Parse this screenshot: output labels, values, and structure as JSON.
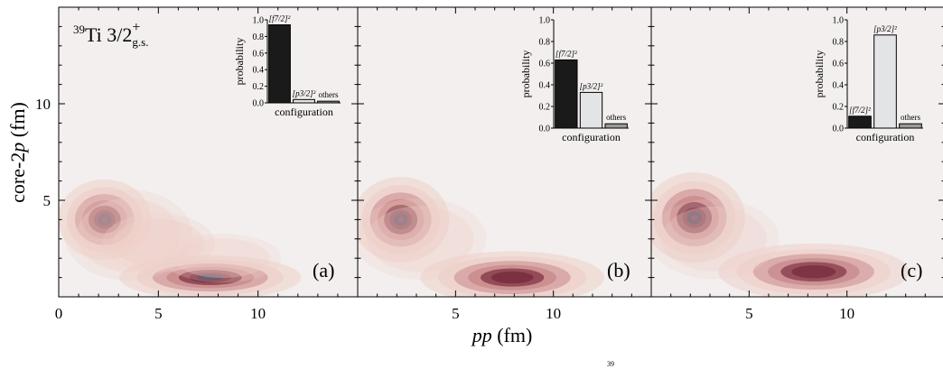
{
  "figure": {
    "ylabel": "core-2p (fm)",
    "xlabel": "pp (fm)",
    "nucleus_label": {
      "mass": "39",
      "text": "Ti 3/2",
      "sup": "+",
      "sub": "g.s."
    },
    "footer_text": "39"
  },
  "colors": {
    "background": "#f2efee",
    "density_light": "#eecfc9",
    "density_mid": "#c8898a",
    "density_dark": "#7a2f3f",
    "density_core": "#3e3550",
    "bar_dark": "#1a1a1a",
    "bar_light": "#e3e4e6",
    "bar_gray": "#9a9a9a"
  },
  "chart_data": [
    {
      "type": "heatmap",
      "panel_label": "(a)",
      "xlabel": "pp (fm)",
      "ylabel": "core-2p (fm)",
      "xlim": [
        0,
        15
      ],
      "ylim": [
        0,
        15
      ],
      "x_ticks": [
        0,
        5,
        10
      ],
      "y_ticks": [
        5,
        10
      ],
      "peaks": [
        {
          "x": 2.3,
          "y": 4.0,
          "amp": 1.0,
          "sx": 0.9,
          "sy": 0.8
        },
        {
          "x": 7.6,
          "y": 1.0,
          "amp": 0.9,
          "sx": 1.8,
          "sy": 0.45
        },
        {
          "x": 5.0,
          "y": 2.8,
          "amp": 0.35,
          "sx": 1.3,
          "sy": 0.7
        },
        {
          "x": 8.2,
          "y": 2.0,
          "amp": 0.25,
          "sx": 1.4,
          "sy": 0.6
        },
        {
          "x": 3.5,
          "y": 3.2,
          "amp": 0.3,
          "sx": 1.5,
          "sy": 1.1
        }
      ],
      "inset": {
        "type": "bar",
        "categories": [
          "[f7/2]²",
          "[p3/2]²",
          "others"
        ],
        "values": [
          0.94,
          0.04,
          0.02
        ],
        "colors": [
          "bar_dark",
          "bar_light",
          "bar_gray"
        ],
        "xlabel": "configuration",
        "ylabel": "probability",
        "ylim": [
          0,
          1.0
        ],
        "y_ticks": [
          "0.0",
          "0.2",
          "0.4",
          "0.6",
          "0.8",
          "1.0"
        ]
      }
    },
    {
      "type": "heatmap",
      "panel_label": "(b)",
      "xlabel": "pp (fm)",
      "ylabel": "core-2p (fm)",
      "xlim": [
        0,
        15
      ],
      "ylim": [
        0,
        15
      ],
      "x_ticks": [
        5,
        10
      ],
      "y_ticks": [
        5,
        10
      ],
      "peaks": [
        {
          "x": 2.2,
          "y": 4.0,
          "amp": 1.0,
          "sx": 0.95,
          "sy": 0.85
        },
        {
          "x": 7.9,
          "y": 1.0,
          "amp": 0.8,
          "sx": 1.9,
          "sy": 0.55
        },
        {
          "x": 3.2,
          "y": 3.0,
          "amp": 0.25,
          "sx": 1.6,
          "sy": 1.0
        }
      ],
      "inset": {
        "type": "bar",
        "categories": [
          "[f7/2]²",
          "[p3/2]²",
          "others"
        ],
        "values": [
          0.63,
          0.33,
          0.04
        ],
        "colors": [
          "bar_dark",
          "bar_light",
          "bar_gray"
        ],
        "xlabel": "configuration",
        "ylabel": "probability",
        "ylim": [
          0,
          1.0
        ],
        "y_ticks": [
          "0.0",
          "0.2",
          "0.4",
          "0.6",
          "0.8",
          "1.0"
        ]
      }
    },
    {
      "type": "heatmap",
      "panel_label": "(c)",
      "xlabel": "pp (fm)",
      "ylabel": "core-2p (fm)",
      "xlim": [
        0,
        15
      ],
      "ylim": [
        0,
        15
      ],
      "x_ticks": [
        5,
        10
      ],
      "y_ticks": [
        5,
        10
      ],
      "peaks": [
        {
          "x": 2.2,
          "y": 4.1,
          "amp": 1.0,
          "sx": 1.0,
          "sy": 0.9
        },
        {
          "x": 8.3,
          "y": 1.3,
          "amp": 0.75,
          "sx": 2.0,
          "sy": 0.6
        },
        {
          "x": 3.2,
          "y": 3.0,
          "amp": 0.2,
          "sx": 1.6,
          "sy": 1.0
        }
      ],
      "inset": {
        "type": "bar",
        "categories": [
          "[f7/2]²",
          "[p3/2]²",
          "others"
        ],
        "values": [
          0.11,
          0.86,
          0.04
        ],
        "colors": [
          "bar_dark",
          "bar_light",
          "bar_gray"
        ],
        "xlabel": "configuration",
        "ylabel": "probability",
        "ylim": [
          0,
          1.0
        ],
        "y_ticks": [
          "0.0",
          "0.2",
          "0.4",
          "0.6",
          "0.8",
          "1.0"
        ]
      }
    }
  ]
}
